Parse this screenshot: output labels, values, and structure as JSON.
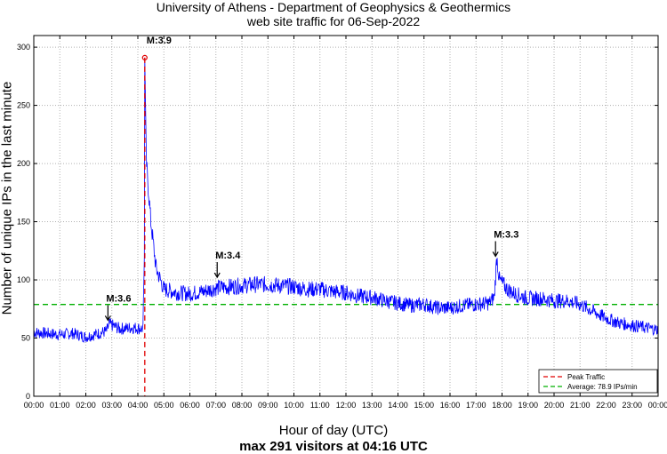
{
  "chart_data": {
    "type": "line",
    "title": "University of Athens - Department of Geophysics & Geothermics",
    "subtitle": "web site traffic for 06-Sep-2022",
    "xlabel": "Hour of day (UTC)",
    "ylabel": "Number of unique IPs in the last minute",
    "footer": "max 291 visitors at 04:16 UTC",
    "xlim": [
      0,
      24
    ],
    "ylim": [
      0,
      310
    ],
    "xticks": [
      "00:00",
      "01:00",
      "02:00",
      "03:00",
      "04:00",
      "05:00",
      "06:00",
      "07:00",
      "08:00",
      "09:00",
      "10:00",
      "11:00",
      "12:00",
      "13:00",
      "14:00",
      "15:00",
      "16:00",
      "17:00",
      "18:00",
      "19:00",
      "20:00",
      "21:00",
      "22:00",
      "23:00",
      "00:00"
    ],
    "yticks": [
      0,
      50,
      100,
      150,
      200,
      250,
      300
    ],
    "grid": true,
    "series": [
      {
        "name": "traffic",
        "color": "#0000ff",
        "x": [
          0,
          0.5,
          1,
          1.5,
          2,
          2.5,
          2.8,
          2.9,
          3.3,
          3.8,
          4.2,
          4.25,
          4.267,
          4.33,
          4.5,
          4.7,
          5,
          5.5,
          6,
          6.5,
          7,
          7.5,
          8,
          8.5,
          9,
          9.5,
          10,
          10.5,
          11,
          11.5,
          12,
          12.5,
          13,
          13.5,
          14,
          14.5,
          15,
          15.5,
          16,
          16.5,
          17,
          17.5,
          17.7,
          17.8,
          17.9,
          18.2,
          18.5,
          19,
          19.5,
          20,
          20.5,
          21,
          21.5,
          22,
          22.5,
          23,
          23.5,
          24
        ],
        "y": [
          55,
          54,
          53,
          54,
          51,
          54,
          56,
          62,
          58,
          59,
          58,
          120,
          291,
          200,
          150,
          110,
          92,
          89,
          88,
          90,
          93,
          94,
          95,
          96,
          96,
          95,
          94,
          92,
          92,
          90,
          89,
          86,
          85,
          82,
          80,
          78,
          79,
          76,
          76,
          78,
          79,
          80,
          85,
          120,
          100,
          92,
          88,
          84,
          84,
          82,
          82,
          79,
          73,
          67,
          63,
          61,
          59,
          57
        ]
      }
    ],
    "reference_lines": [
      {
        "type": "vertical",
        "x": 4.267,
        "label": "Peak Traffic",
        "color": "#e00000",
        "style": "dashed"
      },
      {
        "type": "horizontal",
        "y": 78.9,
        "label": "Average: 78.9 IPs/min",
        "color": "#00b000",
        "style": "dashed"
      }
    ],
    "peak_marker": {
      "x": 4.267,
      "y": 291,
      "color": "#e00000"
    },
    "annotations": [
      {
        "text": "M:3.9",
        "x": 4.267,
        "y": 291,
        "arrow": false
      },
      {
        "text": "M:3.6",
        "x": 2.85,
        "y": 63,
        "arrow": true
      },
      {
        "text": "M:3.4",
        "x": 7.05,
        "y": 100,
        "arrow": true
      },
      {
        "text": "M:3.3",
        "x": 17.75,
        "y": 118,
        "arrow": true
      }
    ],
    "legend": {
      "position": "bottom-right",
      "entries": [
        {
          "label": "Peak Traffic",
          "color": "#e00000"
        },
        {
          "label": "Average: 78.9 IPs/min",
          "color": "#00b000"
        }
      ]
    }
  }
}
